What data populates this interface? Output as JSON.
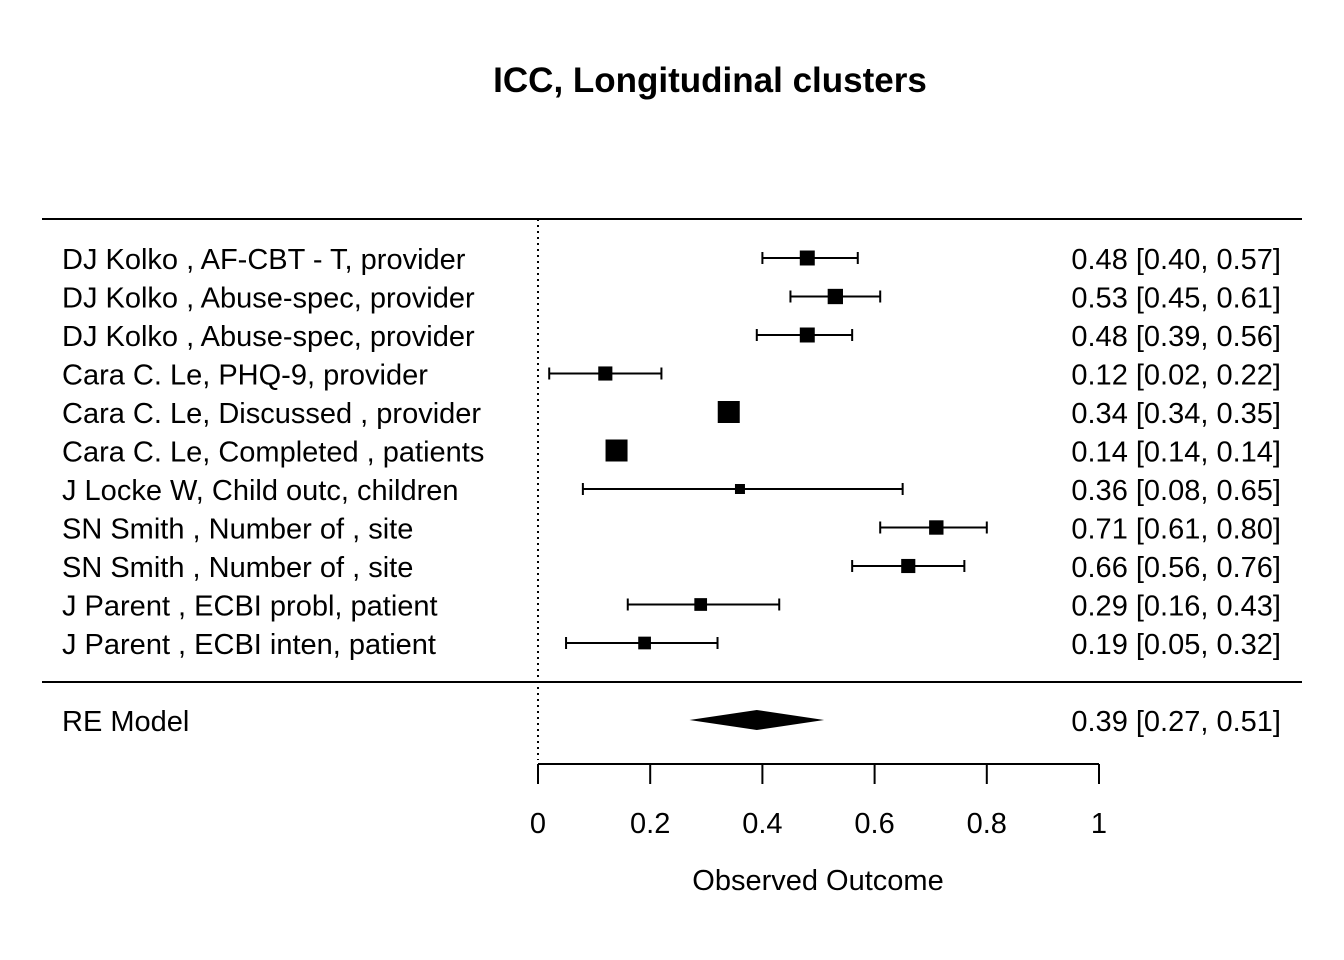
{
  "chart_data": {
    "type": "forest",
    "title": "ICC, Longitudinal clusters",
    "xlabel": "Observed Outcome",
    "xlim": [
      0,
      1
    ],
    "xticks": [
      0,
      0.2,
      0.4,
      0.6,
      0.8,
      1
    ],
    "xtick_labels": [
      "0",
      "0.2",
      "0.4",
      "0.6",
      "0.8",
      "1"
    ],
    "reference_line": 0,
    "studies": [
      {
        "label": "DJ Kolko , AF-CBT - T, provider",
        "estimate": 0.48,
        "lower": 0.4,
        "upper": 0.57,
        "ci_text": "0.48 [0.40, 0.57]"
      },
      {
        "label": "DJ Kolko , Abuse-spec, provider",
        "estimate": 0.53,
        "lower": 0.45,
        "upper": 0.61,
        "ci_text": "0.53 [0.45, 0.61]"
      },
      {
        "label": "DJ Kolko , Abuse-spec, provider",
        "estimate": 0.48,
        "lower": 0.39,
        "upper": 0.56,
        "ci_text": "0.48 [0.39, 0.56]"
      },
      {
        "label": "Cara C. Le, PHQ-9, provider",
        "estimate": 0.12,
        "lower": 0.02,
        "upper": 0.22,
        "ci_text": "0.12 [0.02, 0.22]"
      },
      {
        "label": "Cara C. Le, Discussed , provider",
        "estimate": 0.34,
        "lower": 0.34,
        "upper": 0.35,
        "ci_text": "0.34 [0.34, 0.35]"
      },
      {
        "label": "Cara C. Le, Completed , patients",
        "estimate": 0.14,
        "lower": 0.14,
        "upper": 0.14,
        "ci_text": "0.14 [0.14, 0.14]"
      },
      {
        "label": "J Locke W, Child outc, children",
        "estimate": 0.36,
        "lower": 0.08,
        "upper": 0.65,
        "ci_text": "0.36 [0.08, 0.65]"
      },
      {
        "label": "SN Smith , Number of , site",
        "estimate": 0.71,
        "lower": 0.61,
        "upper": 0.8,
        "ci_text": "0.71 [0.61, 0.80]"
      },
      {
        "label": "SN Smith , Number of , site",
        "estimate": 0.66,
        "lower": 0.56,
        "upper": 0.76,
        "ci_text": "0.66 [0.56, 0.76]"
      },
      {
        "label": "J Parent , ECBI probl, patient",
        "estimate": 0.29,
        "lower": 0.16,
        "upper": 0.43,
        "ci_text": "0.29 [0.16, 0.43]"
      },
      {
        "label": "J Parent , ECBI inten, patient",
        "estimate": 0.19,
        "lower": 0.05,
        "upper": 0.32,
        "ci_text": "0.19 [0.05, 0.32]"
      }
    ],
    "pooled": {
      "label": "RE Model",
      "estimate": 0.39,
      "lower": 0.27,
      "upper": 0.51,
      "ci_text": "0.39 [0.27, 0.51]"
    },
    "colors": {
      "marks": "#000000",
      "background": "#ffffff"
    }
  }
}
